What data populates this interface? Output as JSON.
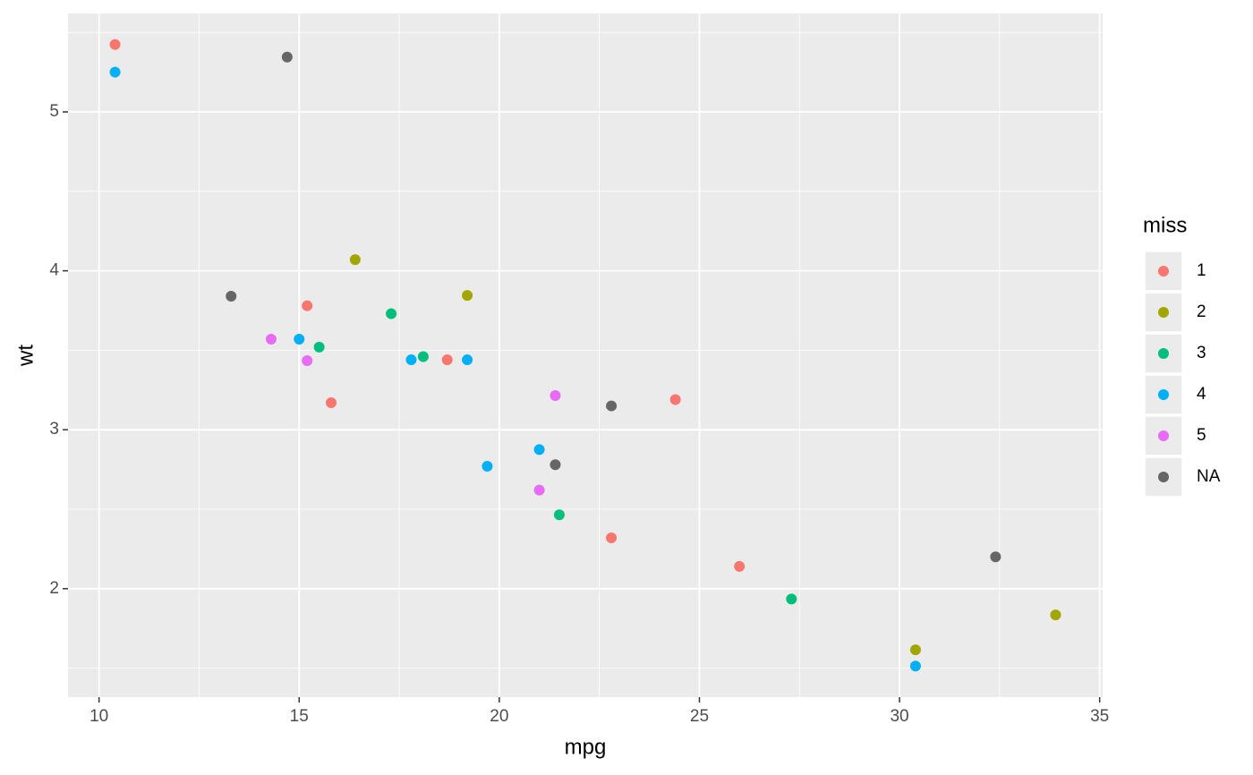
{
  "chart_data": {
    "type": "scatter",
    "x_label": "mpg",
    "y_label": "wt",
    "legend_title": "miss",
    "xlim": [
      9.225,
      35.075
    ],
    "ylim": [
      1.3175,
      5.6195
    ],
    "xticks": [
      10,
      15,
      20,
      25,
      30,
      35
    ],
    "yticks": [
      2,
      3,
      4,
      5
    ],
    "grid": true,
    "legend_position": "right",
    "series": [
      {
        "name": "1",
        "color": "#F8766D",
        "x": [
          10.4,
          15.2,
          18.7,
          15.8,
          24.4,
          22.8,
          26.0
        ],
        "values": [
          5.424,
          3.78,
          3.44,
          3.17,
          3.19,
          2.32,
          2.14
        ]
      },
      {
        "name": "2",
        "color": "#A3A500",
        "x": [
          16.4,
          19.2,
          33.9,
          30.4
        ],
        "values": [
          4.07,
          3.845,
          1.835,
          1.615
        ]
      },
      {
        "name": "3",
        "color": "#00BF7D",
        "x": [
          17.3,
          15.5,
          18.1,
          21.5,
          27.3
        ],
        "values": [
          3.73,
          3.52,
          3.46,
          2.465,
          1.935
        ]
      },
      {
        "name": "4",
        "color": "#00B0F6",
        "x": [
          10.4,
          15.0,
          17.8,
          19.2,
          21.0,
          19.7,
          30.4
        ],
        "values": [
          5.25,
          3.57,
          3.44,
          3.44,
          2.875,
          2.77,
          1.513
        ]
      },
      {
        "name": "5",
        "color": "#E76BF3",
        "x": [
          14.3,
          15.2,
          21.4,
          21.0
        ],
        "values": [
          3.57,
          3.435,
          3.215,
          2.62
        ]
      },
      {
        "name": "NA",
        "color": "#666666",
        "x": [
          14.7,
          13.3,
          22.8,
          21.4,
          32.4
        ],
        "values": [
          5.345,
          3.84,
          3.15,
          2.78,
          2.2
        ]
      }
    ]
  }
}
